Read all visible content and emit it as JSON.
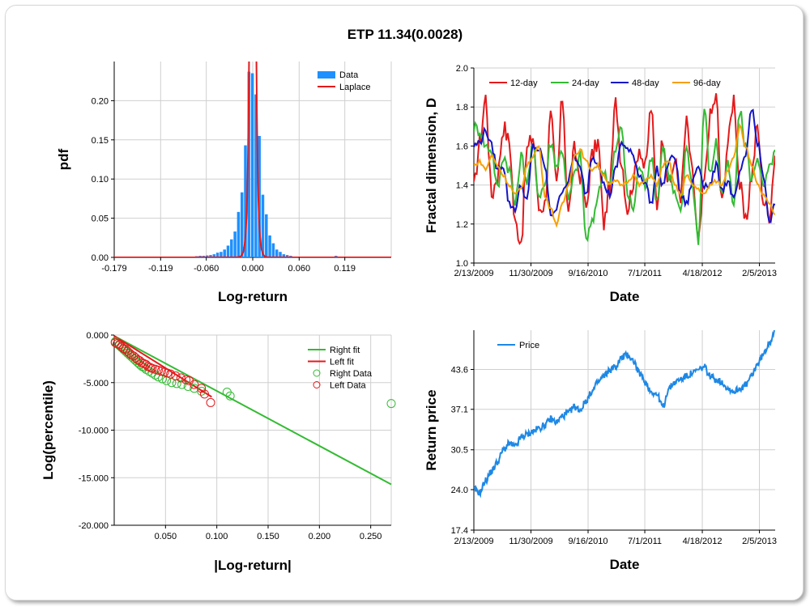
{
  "title": "ETP 11.34(0.0028)",
  "chart_data": [
    {
      "type": "bar",
      "id": "pdf",
      "xlabel": "Log-return",
      "ylabel": "pdf",
      "xlim": [
        -0.179,
        0.179
      ],
      "ylim": [
        0,
        0.25
      ],
      "xticks": [
        "-0.179",
        "-0.119",
        "-0.060",
        "0.000",
        "0.060",
        "0.119"
      ],
      "xtick_values": [
        -0.179,
        -0.119,
        -0.06,
        0.0,
        0.06,
        0.119
      ],
      "yticks": [
        "0.00",
        "0.05",
        "0.10",
        "0.15",
        "0.20"
      ],
      "ytick_values": [
        0,
        0.05,
        0.1,
        0.15,
        0.2
      ],
      "grid": true,
      "legend": "top-right",
      "series": [
        {
          "name": "Data",
          "color": "#1e90ff",
          "bin_width": 0.0045,
          "x": [
            -0.09,
            -0.0855,
            -0.081,
            -0.0765,
            -0.072,
            -0.0675,
            -0.063,
            -0.0585,
            -0.054,
            -0.0495,
            -0.045,
            -0.0405,
            -0.036,
            -0.0315,
            -0.027,
            -0.0225,
            -0.018,
            -0.0135,
            -0.009,
            -0.0045,
            0.0,
            0.0045,
            0.009,
            0.0135,
            0.018,
            0.0225,
            0.027,
            0.0315,
            0.036,
            0.0405,
            0.045,
            0.0495,
            0.054,
            0.0585,
            0.063,
            0.0675,
            0.072,
            0.0765,
            0.081,
            0.0855,
            0.09,
            0.0945,
            0.099,
            0.1035,
            0.108,
            0.1125
          ],
          "values": [
            0.001,
            0.001,
            0.0005,
            0.001,
            0.0015,
            0.002,
            0.002,
            0.0025,
            0.003,
            0.004,
            0.006,
            0.007,
            0.01,
            0.015,
            0.023,
            0.033,
            0.058,
            0.083,
            0.143,
            0.237,
            0.235,
            0.208,
            0.155,
            0.08,
            0.055,
            0.028,
            0.018,
            0.01,
            0.007,
            0.004,
            0.003,
            0.002,
            0.001,
            0.001,
            0.0005,
            0.0005,
            0.0005,
            0.0005,
            0.0005,
            0.0005,
            0.0005,
            0.0005,
            0.0005,
            0.001,
            0.002,
            0.0005
          ]
        },
        {
          "name": "Laplace",
          "color": "#e31a1c",
          "kind": "line",
          "mu": 0.0,
          "b": 0.0021
        }
      ]
    },
    {
      "type": "line",
      "id": "fractal",
      "xlabel": "Date",
      "ylabel": "Fractal dimension, D",
      "xlim": [
        0,
        1530
      ],
      "ylim": [
        1.0,
        2.0
      ],
      "xticks": [
        "2/13/2009",
        "11/30/2009",
        "9/16/2010",
        "7/1/2011",
        "4/18/2012",
        "2/5/2013"
      ],
      "xtick_values": [
        0,
        290,
        580,
        868,
        1160,
        1450
      ],
      "yticks": [
        "1.0",
        "1.2",
        "1.4",
        "1.6",
        "1.8",
        "2.0"
      ],
      "ytick_values": [
        1.0,
        1.2,
        1.4,
        1.6,
        1.8,
        2.0
      ],
      "grid": true,
      "legend": "top",
      "series": [
        {
          "name": "12-day",
          "color": "#e31a1c",
          "x_step": 30,
          "values": [
            1.38,
            1.62,
            1.85,
            1.35,
            1.45,
            1.7,
            1.62,
            1.2,
            1.12,
            1.58,
            1.65,
            1.28,
            1.3,
            1.75,
            1.4,
            1.85,
            1.25,
            1.58,
            1.45,
            1.28,
            1.55,
            1.62,
            1.2,
            1.4,
            1.82,
            1.52,
            1.28,
            1.42,
            1.6,
            1.48,
            1.8,
            1.3,
            1.65,
            1.4,
            1.52,
            1.35,
            1.72,
            1.45,
            1.1,
            1.42,
            1.75,
            1.85,
            1.3,
            1.62,
            1.85,
            1.4,
            1.2,
            1.45,
            1.7,
            1.32,
            1.25,
            1.55
          ]
        },
        {
          "name": "24-day",
          "color": "#33bb33",
          "x_step": 30,
          "values": [
            1.7,
            1.68,
            1.6,
            1.58,
            1.38,
            1.55,
            1.48,
            1.3,
            1.55,
            1.42,
            1.6,
            1.35,
            1.4,
            1.62,
            1.5,
            1.58,
            1.32,
            1.45,
            1.55,
            1.12,
            1.2,
            1.35,
            1.48,
            1.4,
            1.58,
            1.7,
            1.35,
            1.28,
            1.5,
            1.4,
            1.55,
            1.32,
            1.6,
            1.45,
            1.35,
            1.25,
            1.6,
            1.4,
            1.12,
            1.8,
            1.45,
            1.62,
            1.35,
            1.5,
            1.28,
            1.78,
            1.6,
            1.42,
            1.55,
            1.38,
            1.48,
            1.58
          ]
        },
        {
          "name": "48-day",
          "color": "#1515c8",
          "x_step": 30,
          "values": [
            1.6,
            1.62,
            1.68,
            1.6,
            1.48,
            1.5,
            1.3,
            1.28,
            1.4,
            1.32,
            1.6,
            1.58,
            1.5,
            1.25,
            1.28,
            1.38,
            1.42,
            1.55,
            1.48,
            1.35,
            1.55,
            1.52,
            1.4,
            1.35,
            1.48,
            1.62,
            1.58,
            1.55,
            1.45,
            1.42,
            1.3,
            1.48,
            1.4,
            1.52,
            1.55,
            1.35,
            1.3,
            1.42,
            1.5,
            1.4,
            1.4,
            1.5,
            1.38,
            1.42,
            1.32,
            1.45,
            1.55,
            1.8,
            1.62,
            1.45,
            1.2,
            1.3
          ]
        },
        {
          "name": "96-day",
          "color": "#f5a000",
          "x_step": 30,
          "values": [
            1.5,
            1.52,
            1.48,
            1.55,
            1.5,
            1.45,
            1.4,
            1.35,
            1.38,
            1.5,
            1.55,
            1.6,
            1.35,
            1.28,
            1.2,
            1.3,
            1.4,
            1.55,
            1.58,
            1.52,
            1.48,
            1.5,
            1.45,
            1.4,
            1.42,
            1.4,
            1.42,
            1.45,
            1.4,
            1.42,
            1.45,
            1.4,
            1.5,
            1.52,
            1.4,
            1.35,
            1.45,
            1.4,
            1.38,
            1.35,
            1.4,
            1.42,
            1.4,
            1.48,
            1.55,
            1.7,
            1.6,
            1.5,
            1.4,
            1.35,
            1.3,
            1.25
          ]
        }
      ]
    },
    {
      "type": "scatter",
      "id": "tail",
      "xlabel": "|Log-return|",
      "ylabel": "Log(percentile)",
      "xlim": [
        0,
        0.27
      ],
      "ylim": [
        -20,
        0
      ],
      "xticks": [
        "0.050",
        "0.100",
        "0.150",
        "0.200",
        "0.250"
      ],
      "xtick_values": [
        0.05,
        0.1,
        0.15,
        0.2,
        0.25
      ],
      "yticks": [
        "0.000",
        "-5.000",
        "-10.000",
        "-15.000",
        "-20.000"
      ],
      "ytick_values": [
        0,
        -5,
        -10,
        -15,
        -20
      ],
      "grid": true,
      "legend": "top-right",
      "series": [
        {
          "name": "Right fit",
          "color": "#33bb33",
          "kind": "line",
          "x": [
            0.0,
            0.27
          ],
          "y": [
            -0.1,
            -15.7
          ]
        },
        {
          "name": "Left fit",
          "color": "#e31a1c",
          "kind": "line",
          "x": [
            0.0,
            0.095
          ],
          "y": [
            -0.1,
            -6.5
          ]
        },
        {
          "name": "Right Data",
          "color": "#33bb33",
          "kind": "points",
          "x": [
            0.001,
            0.003,
            0.005,
            0.007,
            0.009,
            0.011,
            0.013,
            0.015,
            0.017,
            0.019,
            0.021,
            0.023,
            0.025,
            0.027,
            0.029,
            0.031,
            0.034,
            0.037,
            0.04,
            0.043,
            0.047,
            0.051,
            0.056,
            0.061,
            0.066,
            0.072,
            0.078,
            0.085,
            0.11,
            0.113,
            0.27
          ],
          "y": [
            -0.7,
            -0.9,
            -1.1,
            -1.3,
            -1.5,
            -1.7,
            -1.9,
            -2.1,
            -2.3,
            -2.5,
            -2.7,
            -2.9,
            -3.1,
            -3.3,
            -3.4,
            -3.6,
            -3.8,
            -4.0,
            -4.2,
            -4.4,
            -4.6,
            -4.8,
            -5.0,
            -5.1,
            -5.2,
            -5.4,
            -5.6,
            -5.9,
            -6.0,
            -6.4,
            -7.2
          ]
        },
        {
          "name": "Left Data",
          "color": "#e31a1c",
          "kind": "points",
          "x": [
            0.001,
            0.003,
            0.005,
            0.007,
            0.009,
            0.011,
            0.013,
            0.015,
            0.017,
            0.019,
            0.021,
            0.023,
            0.025,
            0.027,
            0.029,
            0.031,
            0.033,
            0.035,
            0.037,
            0.04,
            0.043,
            0.046,
            0.049,
            0.052,
            0.055,
            0.06,
            0.065,
            0.07,
            0.073,
            0.078,
            0.085,
            0.088,
            0.094
          ],
          "y": [
            -0.8,
            -0.9,
            -1.0,
            -1.2,
            -1.4,
            -1.5,
            -1.7,
            -1.9,
            -2.1,
            -2.2,
            -2.4,
            -2.6,
            -2.7,
            -2.9,
            -3.0,
            -3.1,
            -3.3,
            -3.4,
            -3.5,
            -3.6,
            -3.7,
            -3.8,
            -3.9,
            -4.0,
            -4.1,
            -4.3,
            -4.5,
            -4.7,
            -4.8,
            -5.2,
            -5.6,
            -6.2,
            -7.1
          ]
        }
      ]
    },
    {
      "type": "line",
      "id": "price",
      "xlabel": "Date",
      "ylabel": "Return price",
      "xlim": [
        0,
        1530
      ],
      "ylim": [
        17.4,
        50.0
      ],
      "xticks": [
        "2/13/2009",
        "11/30/2009",
        "9/16/2010",
        "7/1/2011",
        "4/18/2012",
        "2/5/2013"
      ],
      "xtick_values": [
        0,
        290,
        580,
        868,
        1160,
        1450
      ],
      "yticks": [
        "17.4",
        "24.0",
        "30.5",
        "37.1",
        "43.6"
      ],
      "ytick_values": [
        17.4,
        24.0,
        30.5,
        37.1,
        43.6
      ],
      "grid": true,
      "legend": "top-left",
      "series": [
        {
          "name": "Price",
          "color": "#1e88e5",
          "x_step": 30,
          "values": [
            24.0,
            23.5,
            25.5,
            27.0,
            28.5,
            30.5,
            31.5,
            31.0,
            32.5,
            33.0,
            33.5,
            34.0,
            34.5,
            35.5,
            35.0,
            36.0,
            36.5,
            37.5,
            37.0,
            38.5,
            40.0,
            41.5,
            42.5,
            43.5,
            44.0,
            45.5,
            46.0,
            45.0,
            43.0,
            41.5,
            40.0,
            39.5,
            37.5,
            40.5,
            41.5,
            42.0,
            42.5,
            43.0,
            43.5,
            44.0,
            42.5,
            42.0,
            41.5,
            40.5,
            40.0,
            40.5,
            41.0,
            42.5,
            44.5,
            46.0,
            48.0,
            50.0
          ]
        }
      ]
    }
  ]
}
